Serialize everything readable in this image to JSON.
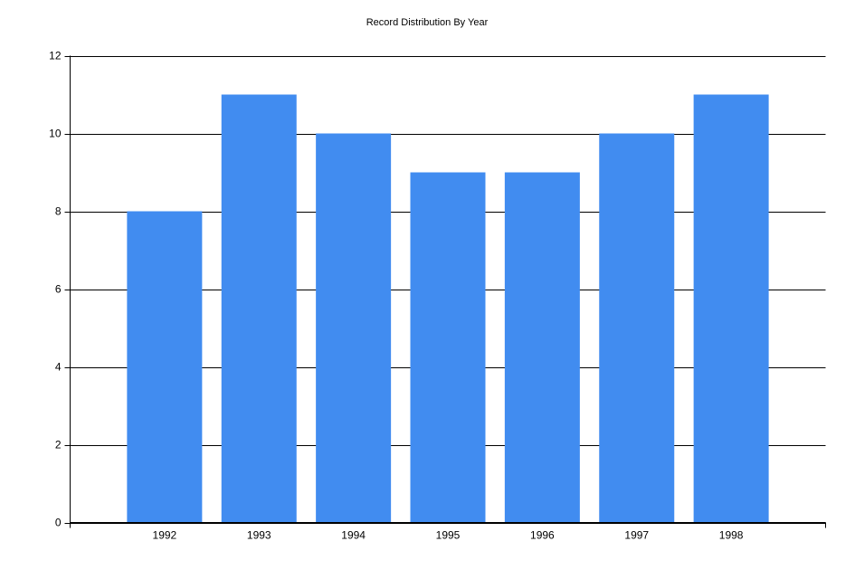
{
  "chart_data": {
    "type": "bar",
    "title": "Record Distribution By Year",
    "categories": [
      "1992",
      "1993",
      "1994",
      "1995",
      "1996",
      "1997",
      "1998"
    ],
    "values": [
      8,
      11,
      10,
      9,
      9,
      10,
      11
    ],
    "color": "#418cf0",
    "ylim": [
      0,
      12
    ],
    "yticks": [
      0,
      2,
      4,
      6,
      8,
      10,
      12
    ],
    "grid": true
  }
}
